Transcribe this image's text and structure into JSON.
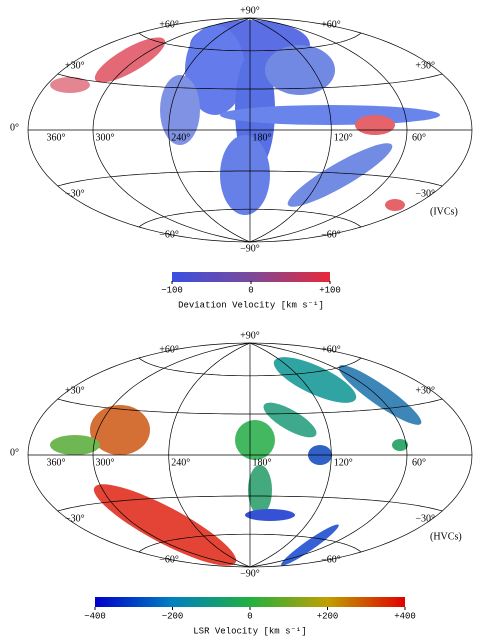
{
  "panels": [
    {
      "tag": "(IVCs)",
      "latitude_labels": [
        "+90°",
        "+60°",
        "+30°",
        "0°",
        "−30°",
        "−60°",
        "−90°"
      ],
      "longitude_labels": [
        "360°",
        "300°",
        "240°",
        "180°",
        "120°",
        "60°"
      ],
      "colorbar": {
        "ticks": [
          "−100",
          "0",
          "+100"
        ],
        "label": "Deviation Velocity [km s⁻¹]"
      }
    },
    {
      "tag": "(HVCs)",
      "latitude_labels": [
        "+90°",
        "+60°",
        "+30°",
        "0°",
        "−30°",
        "−60°",
        "−90°"
      ],
      "longitude_labels": [
        "360°",
        "300°",
        "240°",
        "180°",
        "120°",
        "60°"
      ],
      "colorbar": {
        "ticks": [
          "−400",
          "−200",
          "0",
          "+200",
          "+400"
        ],
        "label": "LSR Velocity [km s⁻¹]"
      }
    }
  ]
}
